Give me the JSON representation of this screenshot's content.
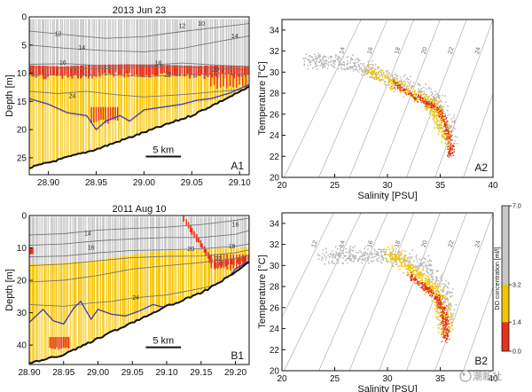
{
  "chart_data": [
    {
      "id": "A1",
      "type": "section",
      "title": "2013 Jun 23",
      "ylabel": "Depth [m]",
      "xlim": [
        28.88,
        29.11
      ],
      "ylim": [
        0,
        28
      ],
      "x_ticks": [
        28.9,
        28.95,
        29.0,
        29.05,
        29.1
      ],
      "x_tick_labels": [
        "28.90",
        "28.95",
        "29.00",
        "29.05",
        "29.10"
      ],
      "y_ticks": [
        0,
        5,
        10,
        15,
        20,
        25
      ],
      "y_tick_labels": [
        "0",
        "5",
        "10",
        "15",
        "20",
        "25"
      ],
      "scale_bar_label": "5 km",
      "panel_label": "A1",
      "isotherm_labels": [
        {
          "text": "10",
          "x": 29.06,
          "y": 1.2
        },
        {
          "text": "12",
          "x": 29.04,
          "y": 1.6
        },
        {
          "text": "12",
          "x": 28.91,
          "y": 3.0
        },
        {
          "text": "14",
          "x": 28.935,
          "y": 5.4
        },
        {
          "text": "14",
          "x": 29.095,
          "y": 3.4
        },
        {
          "text": "16",
          "x": 28.915,
          "y": 8.1
        },
        {
          "text": "18",
          "x": 29.015,
          "y": 8.2
        },
        {
          "text": "20",
          "x": 29.075,
          "y": 9.3
        },
        {
          "text": "22",
          "x": 29.025,
          "y": 10.2
        },
        {
          "text": "24",
          "x": 28.925,
          "y": 14.0
        }
      ],
      "isotherms": [
        {
          "x": [
            28.88,
            28.92,
            28.96,
            29.0,
            29.04,
            29.08,
            29.11
          ],
          "y": [
            2.5,
            3.2,
            3.8,
            3.5,
            2.6,
            1.8,
            1.2
          ]
        },
        {
          "x": [
            28.88,
            28.92,
            28.96,
            29.0,
            29.04,
            29.08,
            29.11
          ],
          "y": [
            5.0,
            5.6,
            6.0,
            6.2,
            5.6,
            4.3,
            3.4
          ]
        },
        {
          "x": [
            28.88,
            28.92,
            28.96,
            29.0,
            29.04,
            29.08,
            29.11
          ],
          "y": [
            8.4,
            8.3,
            8.7,
            8.6,
            8.2,
            8.6,
            8.8
          ]
        },
        {
          "x": [
            28.88,
            28.92,
            28.96,
            29.0,
            29.04,
            29.08,
            29.11
          ],
          "y": [
            9.0,
            9.1,
            9.2,
            8.9,
            8.9,
            9.1,
            9.4
          ]
        },
        {
          "x": [
            28.88,
            28.92,
            28.96,
            29.0,
            29.04,
            29.08,
            29.11
          ],
          "y": [
            10.2,
            10.4,
            10.2,
            10.6,
            10.3,
            10.0,
            10.2
          ]
        },
        {
          "x": [
            28.88,
            28.91,
            28.94,
            28.97,
            29.0,
            29.04,
            29.08,
            29.11
          ],
          "y": [
            13.2,
            13.6,
            13.2,
            13.8,
            14.2,
            13.8,
            13.2,
            12.8
          ]
        }
      ],
      "do_bands": [
        {
          "level": "high",
          "color": "#c8c8c8",
          "top": [
            0,
            0,
            0,
            0,
            0,
            0,
            0,
            0
          ]
        },
        {
          "level": "mid",
          "color": "#f5c400",
          "top": [
            9.3,
            9.4,
            9.5,
            9.6,
            9.4,
            9.3,
            9.1,
            9.2
          ]
        },
        {
          "level": "low",
          "color": "#e8301a",
          "top": [
            8.6,
            8.8,
            8.5,
            8.4,
            8.5,
            8.7,
            8.6,
            8.8
          ]
        }
      ],
      "do_band_x": [
        28.88,
        28.915,
        28.95,
        28.985,
        29.02,
        29.055,
        29.085,
        29.11
      ],
      "low_patches": [
        {
          "x": [
            28.945,
            28.975
          ],
          "y": [
            16.0,
            19.0
          ]
        },
        {
          "x": [
            29.07,
            29.11
          ],
          "y": [
            10.0,
            12.8
          ]
        }
      ],
      "blue_line": {
        "x": [
          28.88,
          28.9,
          28.92,
          28.94,
          28.95,
          28.96,
          28.975,
          28.985,
          29.0,
          29.02,
          29.04,
          29.055,
          29.07,
          29.09,
          29.11
        ],
        "y": [
          14.5,
          15.5,
          17.0,
          17.5,
          20.0,
          18.5,
          17.5,
          18.5,
          16.5,
          16.0,
          15.5,
          14.8,
          14.5,
          13.5,
          12.0
        ]
      },
      "bottom": {
        "x": [
          28.88,
          28.95,
          29.0,
          29.05,
          29.11
        ],
        "y": [
          26.8,
          23.5,
          20.5,
          17.5,
          12.5
        ]
      }
    },
    {
      "id": "A2",
      "type": "ts_diagram",
      "xlabel": "Salinity [PSU]",
      "ylabel": "Temperature [°C]",
      "xlim": [
        20,
        40
      ],
      "ylim": [
        20,
        35
      ],
      "x_ticks": [
        20,
        25,
        30,
        35,
        40
      ],
      "x_tick_labels": [
        "20",
        "25",
        "30",
        "35",
        "40"
      ],
      "y_ticks": [
        20,
        22,
        24,
        26,
        28,
        30,
        32,
        34
      ],
      "y_tick_labels": [
        "20",
        "22",
        "24",
        "26",
        "28",
        "30",
        "32",
        "34"
      ],
      "panel_label": "A2",
      "isopycnal_labels": [
        "14",
        "16",
        "18",
        "20",
        "22",
        "24",
        "26"
      ],
      "isopycnal_bottom_salinity": [
        20.2,
        23.5,
        26.4,
        29.2,
        31.8,
        34.5,
        37.2
      ],
      "isopycnal_top_salinity": [
        27.5,
        30.0,
        32.5,
        35.0,
        37.5,
        40.0,
        42.5
      ],
      "clusters": [
        {
          "level": "high",
          "color": "#b8b8b8",
          "s": [
            22.5,
            23.5,
            25.0,
            26.5,
            28.0,
            30.0,
            32.0,
            34.5,
            35.5,
            36.0
          ],
          "t": [
            31.0,
            31.0,
            31.0,
            30.8,
            30.3,
            29.5,
            28.6,
            27.6,
            25.5,
            23.5
          ]
        },
        {
          "level": "mid",
          "color": "#f5c400",
          "s": [
            28.0,
            30.0,
            32.0,
            33.5,
            34.5,
            35.0,
            35.5
          ],
          "t": [
            30.3,
            29.3,
            28.2,
            27.4,
            26.6,
            25.2,
            23.5
          ]
        },
        {
          "level": "low",
          "color": "#e03010",
          "s": [
            30.5,
            32.0,
            33.5,
            34.8,
            35.6,
            36.0,
            35.9
          ],
          "t": [
            29.0,
            28.0,
            27.2,
            26.5,
            25.0,
            23.0,
            22.0
          ]
        }
      ]
    },
    {
      "id": "B1",
      "type": "section",
      "title": "2011 Aug 10",
      "ylabel": "Depth [m]",
      "xlim": [
        28.9,
        29.22
      ],
      "ylim": [
        0,
        46
      ],
      "x_ticks": [
        28.9,
        28.95,
        29.0,
        29.05,
        29.1,
        29.15,
        29.2
      ],
      "x_tick_labels": [
        "28.90",
        "28.95",
        "29.00",
        "29.05",
        "29.10",
        "29.15",
        "29.20"
      ],
      "y_ticks": [
        0,
        10,
        20,
        30,
        40
      ],
      "y_tick_labels": [
        "0",
        "10",
        "20",
        "30",
        "40"
      ],
      "scale_bar_label": "5 km",
      "panel_label": "B1",
      "isotherm_labels": [
        {
          "text": "16",
          "x": 29.2,
          "y": 2.8
        },
        {
          "text": "14",
          "x": 28.985,
          "y": 5.5
        },
        {
          "text": "18",
          "x": 29.195,
          "y": 9.4
        },
        {
          "text": "16",
          "x": 28.99,
          "y": 9.8
        },
        {
          "text": "20",
          "x": 29.135,
          "y": 10.3
        },
        {
          "text": "22",
          "x": 29.175,
          "y": 13.3
        },
        {
          "text": "24",
          "x": 29.055,
          "y": 25.3
        }
      ],
      "isotherms": [
        {
          "x": [
            28.9,
            28.95,
            29.0,
            29.05,
            29.1,
            29.15,
            29.2,
            29.22
          ],
          "y": [
            6.0,
            5.6,
            4.5,
            4.0,
            3.6,
            2.8,
            1.5,
            0.8
          ]
        },
        {
          "x": [
            28.9,
            28.95,
            29.0,
            29.05,
            29.1,
            29.15,
            29.2,
            29.22
          ],
          "y": [
            9.2,
            8.8,
            7.8,
            7.2,
            6.8,
            6.8,
            5.8,
            4.6
          ]
        },
        {
          "x": [
            28.9,
            28.95,
            29.0,
            29.05,
            29.1,
            29.15,
            29.2,
            29.22
          ],
          "y": [
            12.8,
            12.5,
            11.5,
            10.8,
            10.6,
            10.3,
            9.5,
            8.8
          ]
        },
        {
          "x": [
            28.9,
            28.95,
            29.0,
            29.05,
            29.1,
            29.15,
            29.2,
            29.22
          ],
          "y": [
            15.5,
            15.0,
            14.0,
            13.0,
            12.6,
            12.5,
            11.5,
            10.6
          ]
        },
        {
          "x": [
            28.9,
            28.95,
            29.0,
            29.05,
            29.1,
            29.15,
            29.2,
            29.22
          ],
          "y": [
            20.5,
            20.0,
            18.5,
            16.5,
            15.5,
            14.5,
            13.2,
            12.2
          ]
        },
        {
          "x": [
            28.9,
            28.95,
            28.99,
            29.02,
            29.05,
            29.1,
            29.15,
            29.22
          ],
          "y": [
            27.5,
            28.0,
            27.0,
            26.5,
            25.5,
            24.5,
            22.5,
            19.0
          ]
        }
      ],
      "do_bands": [
        {
          "level": "high",
          "color": "#c8c8c8",
          "top": [
            0,
            0,
            0,
            0,
            0,
            0,
            0,
            0
          ]
        },
        {
          "level": "mid",
          "color": "#f5c400",
          "top": [
            15.0,
            14.5,
            14.0,
            12.5,
            11.2,
            10.6,
            10.2,
            9.8
          ]
        },
        {
          "level": "low",
          "color": "#e8301a",
          "top": [
            0,
            0,
            0,
            0,
            0,
            0,
            14.5,
            12.2
          ]
        }
      ],
      "do_band_x": [
        28.9,
        28.945,
        28.99,
        29.035,
        29.08,
        29.125,
        29.17,
        29.22
      ],
      "low_patches": [
        {
          "x": [
            29.165,
            29.22
          ],
          "y": [
            12.0,
            17.0
          ]
        },
        {
          "x": [
            28.93,
            28.96
          ],
          "y": [
            37.5,
            41.5
          ]
        },
        {
          "x": [
            28.9,
            28.905
          ],
          "y": [
            10.0,
            12.0
          ]
        }
      ],
      "blue_line": {
        "x": [
          28.9,
          28.92,
          28.935,
          28.95,
          28.965,
          28.975,
          28.99,
          29.0,
          29.02,
          29.04,
          29.06,
          29.08,
          29.1,
          29.12,
          29.14,
          29.16,
          29.18,
          29.2,
          29.22
        ],
        "y": [
          33.0,
          29.0,
          32.5,
          33.5,
          28.5,
          26.5,
          32.0,
          29.0,
          30.5,
          31.0,
          29.5,
          27.5,
          28.5,
          29.0,
          26.5,
          24.5,
          22.0,
          16.5,
          14.0
        ]
      },
      "bottom": {
        "x": [
          28.9,
          28.95,
          29.0,
          29.05,
          29.1,
          29.15,
          29.2,
          29.22
        ],
        "y": [
          45.5,
          43.0,
          38.0,
          33.0,
          28.0,
          24.0,
          17.5,
          14.5
        ]
      }
    },
    {
      "id": "B2",
      "type": "ts_diagram",
      "xlabel": "Salinity [PSU]",
      "ylabel": "Temperature [°C]",
      "xlim": [
        20,
        40
      ],
      "ylim": [
        20,
        35
      ],
      "x_ticks": [
        20,
        25,
        30,
        35,
        40
      ],
      "x_tick_labels": [
        "20",
        "25",
        "30",
        "35",
        "40"
      ],
      "y_ticks": [
        20,
        22,
        24,
        26,
        28,
        30,
        32,
        34
      ],
      "y_tick_labels": [
        "20",
        "22",
        "24",
        "26",
        "28",
        "30",
        "32",
        "34"
      ],
      "panel_label": "B2",
      "isopycnal_labels": [
        "12",
        "14",
        "16",
        "18",
        "20",
        "22",
        "24",
        "26"
      ],
      "isopycnal_bottom_salinity": [
        17.5,
        20.2,
        23.5,
        26.4,
        29.2,
        31.8,
        34.5,
        37.2
      ],
      "isopycnal_top_salinity": [
        24.9,
        27.5,
        30.0,
        32.5,
        35.0,
        37.5,
        40.0,
        42.5
      ],
      "clusters": [
        {
          "level": "high",
          "color": "#b8b8b8",
          "s": [
            24.0,
            25.5,
            27.0,
            28.5,
            30.5,
            32.5,
            34.0,
            35.2,
            35.6,
            35.5
          ],
          "t": [
            30.8,
            30.9,
            31.0,
            31.0,
            30.8,
            30.5,
            29.5,
            27.8,
            26.0,
            24.5
          ]
        },
        {
          "level": "mid",
          "color": "#f5c400",
          "s": [
            30.0,
            31.0,
            32.0,
            33.0,
            33.8,
            34.5,
            35.0,
            35.4,
            35.5
          ],
          "t": [
            31.2,
            30.7,
            29.8,
            28.8,
            28.2,
            27.6,
            26.5,
            25.2,
            23.5
          ]
        },
        {
          "level": "low",
          "color": "#e03010",
          "s": [
            32.0,
            33.0,
            34.0,
            34.8,
            35.3,
            35.5,
            35.5
          ],
          "t": [
            29.2,
            28.3,
            27.6,
            26.8,
            25.8,
            24.5,
            22.8
          ]
        }
      ]
    }
  ],
  "colorbar": {
    "title": "DO concentration [ml/l]",
    "ticks": [
      0.0,
      1.4,
      3.2,
      7.0
    ],
    "tick_labels": [
      "0.0",
      "1.4",
      "3.2",
      "7.0"
    ],
    "segments": [
      {
        "from": 0.0,
        "to": 1.4,
        "color": "#e8301a"
      },
      {
        "from": 1.4,
        "to": 3.2,
        "color": "#f5c400"
      },
      {
        "from": 3.2,
        "to": 7.0,
        "color": "#c8c8c8"
      }
    ]
  },
  "watermark": "潮新社"
}
